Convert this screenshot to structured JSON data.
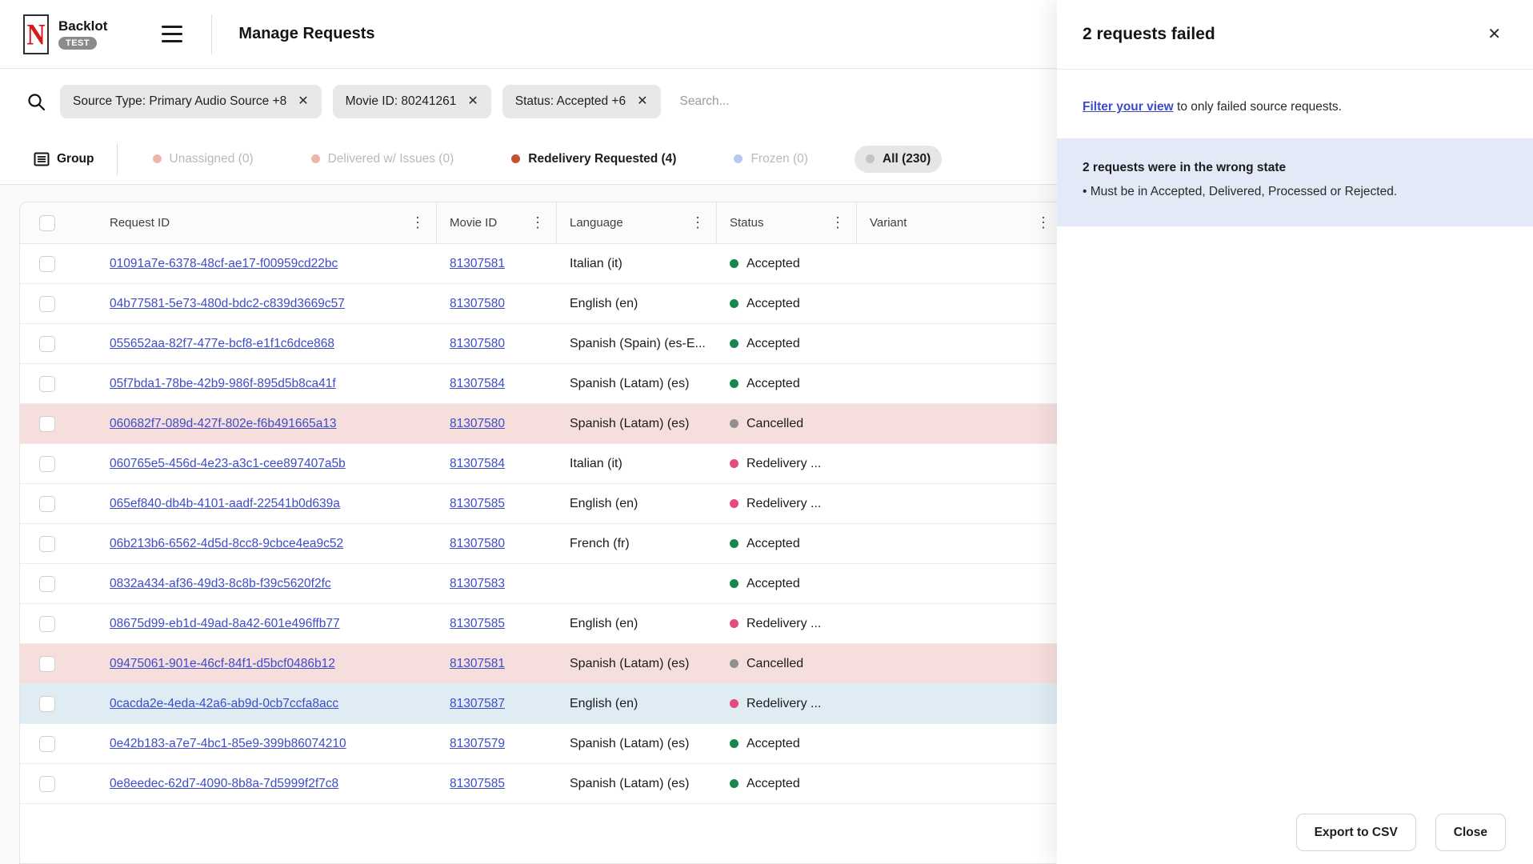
{
  "header": {
    "logo_letter": "N",
    "app_name": "Backlot",
    "env_badge": "TEST",
    "page_title": "Manage Requests"
  },
  "filter_bar": {
    "chips": [
      {
        "label": "Source Type: Primary Audio Source +8"
      },
      {
        "label": "Movie ID: 80241261"
      },
      {
        "label": "Status: Accepted +6"
      }
    ],
    "search_placeholder": "Search..."
  },
  "tabs": {
    "group_label": "Group",
    "items": [
      {
        "label": "Unassigned (0)",
        "dot_color": "#efb5ab",
        "muted": true,
        "pill": false
      },
      {
        "label": "Delivered w/ Issues (0)",
        "dot_color": "#efb5ab",
        "muted": true,
        "pill": false
      },
      {
        "label": "Redelivery Requested (4)",
        "dot_color": "#c8502f",
        "muted": false,
        "pill": false
      },
      {
        "label": "Frozen (0)",
        "dot_color": "#b6c9f2",
        "muted": true,
        "pill": false
      },
      {
        "label": "All (230)",
        "dot_color": "#c4c4c4",
        "muted": false,
        "pill": true
      }
    ]
  },
  "table": {
    "columns": [
      "Request ID",
      "Movie ID",
      "Language",
      "Status",
      "Variant"
    ],
    "status_colors": {
      "Accepted": "#17874d",
      "Cancelled": "#909090",
      "Redelivery ...": "#e24a80"
    },
    "rows": [
      {
        "request_id": "01091a7e-6378-48cf-ae17-f00959cd22bc",
        "movie_id": "81307581",
        "language": "Italian (it)",
        "status": "Accepted",
        "status_color": "#17874d",
        "highlight": ""
      },
      {
        "request_id": "04b77581-5e73-480d-bdc2-c839d3669c57",
        "movie_id": "81307580",
        "language": "English (en)",
        "status": "Accepted",
        "status_color": "#17874d",
        "highlight": ""
      },
      {
        "request_id": "055652aa-82f7-477e-bcf8-e1f1c6dce868",
        "movie_id": "81307580",
        "language": "Spanish (Spain) (es-E...",
        "status": "Accepted",
        "status_color": "#17874d",
        "highlight": ""
      },
      {
        "request_id": "05f7bda1-78be-42b9-986f-895d5b8ca41f",
        "movie_id": "81307584",
        "language": "Spanish (Latam) (es)",
        "status": "Accepted",
        "status_color": "#17874d",
        "highlight": ""
      },
      {
        "request_id": "060682f7-089d-427f-802e-f6b491665a13",
        "movie_id": "81307580",
        "language": "Spanish (Latam) (es)",
        "status": "Cancelled",
        "status_color": "#909090",
        "highlight": "pink"
      },
      {
        "request_id": "060765e5-456d-4e23-a3c1-cee897407a5b",
        "movie_id": "81307584",
        "language": "Italian (it)",
        "status": "Redelivery ...",
        "status_color": "#e24a80",
        "highlight": ""
      },
      {
        "request_id": "065ef840-db4b-4101-aadf-22541b0d639a",
        "movie_id": "81307585",
        "language": "English (en)",
        "status": "Redelivery ...",
        "status_color": "#e24a80",
        "highlight": ""
      },
      {
        "request_id": "06b213b6-6562-4d5d-8cc8-9cbce4ea9c52",
        "movie_id": "81307580",
        "language": "French (fr)",
        "status": "Accepted",
        "status_color": "#17874d",
        "highlight": ""
      },
      {
        "request_id": "0832a434-af36-49d3-8c8b-f39c5620f2fc",
        "movie_id": "81307583",
        "language": "",
        "status": "Accepted",
        "status_color": "#17874d",
        "highlight": ""
      },
      {
        "request_id": "08675d99-eb1d-49ad-8a42-601e496ffb77",
        "movie_id": "81307585",
        "language": "English (en)",
        "status": "Redelivery ...",
        "status_color": "#e24a80",
        "highlight": ""
      },
      {
        "request_id": "09475061-901e-46cf-84f1-d5bcf0486b12",
        "movie_id": "81307581",
        "language": "Spanish (Latam) (es)",
        "status": "Cancelled",
        "status_color": "#909090",
        "highlight": "pink"
      },
      {
        "request_id": "0cacda2e-4eda-42a6-ab9d-0cb7ccfa8acc",
        "movie_id": "81307587",
        "language": "English (en)",
        "status": "Redelivery ...",
        "status_color": "#e24a80",
        "highlight": "blue"
      },
      {
        "request_id": "0e42b183-a7e7-4bc1-85e9-399b86074210",
        "movie_id": "81307579",
        "language": "Spanish (Latam) (es)",
        "status": "Accepted",
        "status_color": "#17874d",
        "highlight": ""
      },
      {
        "request_id": "0e8eedec-62d7-4090-8b8a-7d5999f2f7c8",
        "movie_id": "81307585",
        "language": "Spanish (Latam) (es)",
        "status": "Accepted",
        "status_color": "#17874d",
        "highlight": ""
      }
    ]
  },
  "panel": {
    "title": "2 requests failed",
    "filter_link": "Filter your view",
    "filter_text_rest": " to only failed source requests.",
    "info": {
      "title": "2 requests were in the wrong state",
      "bullet": "• Must be in Accepted, Delivered, Processed or Rejected."
    },
    "buttons": {
      "export": "Export to CSV",
      "close": "Close"
    }
  }
}
